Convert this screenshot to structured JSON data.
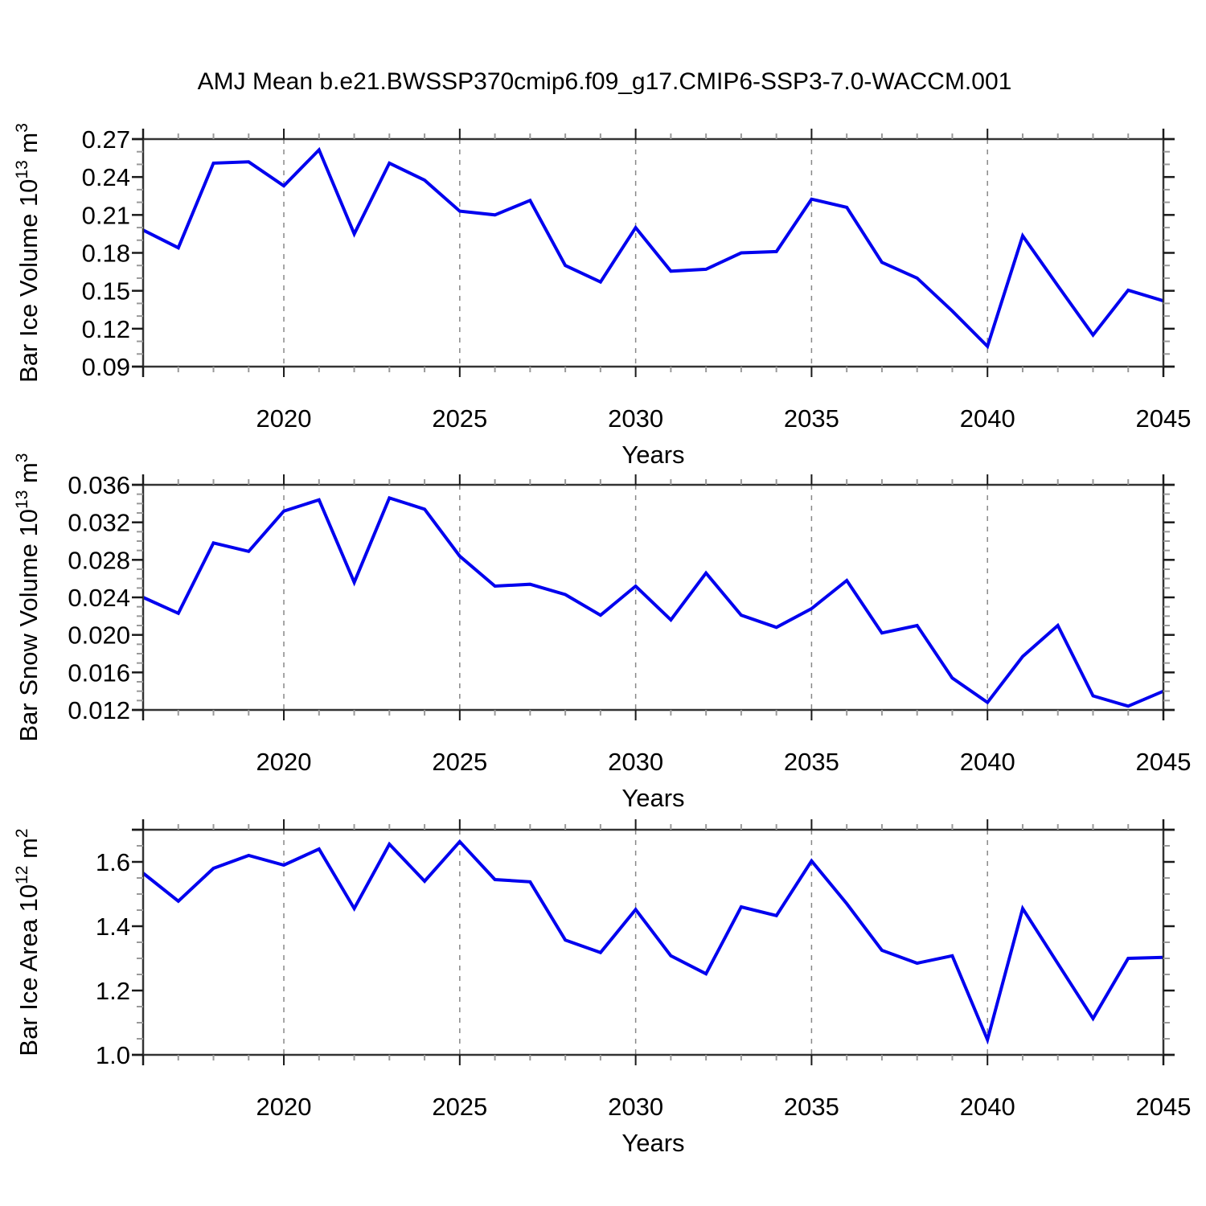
{
  "title": "AMJ Mean b.e21.BWSSP370cmip6.f09_g17.CMIP6-SSP3-7.0-WACCM.001",
  "colors": {
    "line": "#0000EE",
    "grid": "#888888",
    "frame": "#333333",
    "minor_tick": "#999999",
    "major_tick": "#1a1a1a",
    "text": "#000000"
  },
  "chart_data": [
    {
      "type": "line",
      "name": "bar-ice-volume",
      "ylabel": "Bar Ice Volume 10^13 m^3",
      "ylabel_parts": [
        {
          "t": "Bar Ice Volume 10"
        },
        {
          "t": "13",
          "sup": true
        },
        {
          "t": " m"
        },
        {
          "t": "3",
          "sup": true
        }
      ],
      "xlabel": "Years",
      "x": [
        2016,
        2017,
        2018,
        2019,
        2020,
        2021,
        2022,
        2023,
        2024,
        2025,
        2026,
        2027,
        2028,
        2029,
        2030,
        2031,
        2032,
        2033,
        2034,
        2035,
        2036,
        2037,
        2038,
        2039,
        2040,
        2041,
        2042,
        2043,
        2044,
        2045
      ],
      "values": [
        0.198,
        0.184,
        0.251,
        0.252,
        0.233,
        0.2615,
        0.195,
        0.251,
        0.2375,
        0.213,
        0.21,
        0.2215,
        0.17,
        0.157,
        0.2,
        0.1655,
        0.167,
        0.18,
        0.181,
        0.2225,
        0.216,
        0.1725,
        0.16,
        0.134,
        0.106,
        0.1935,
        0.154,
        0.115,
        0.1505,
        0.142
      ],
      "ylim": [
        0.09,
        0.27
      ],
      "yticks": [
        {
          "v": 0.09,
          "label": "0.09"
        },
        {
          "v": 0.12,
          "label": "0.12"
        },
        {
          "v": 0.15,
          "label": "0.15"
        },
        {
          "v": 0.18,
          "label": "0.18"
        },
        {
          "v": 0.21,
          "label": "0.21"
        },
        {
          "v": 0.24,
          "label": "0.24"
        },
        {
          "v": 0.27,
          "label": "0.27"
        }
      ],
      "y_minor_step": 0.01,
      "xticks_major": [
        2020,
        2025,
        2030,
        2035,
        2040,
        2045
      ],
      "xtick_labels": [
        "2020",
        "2025",
        "2030",
        "2035",
        "2040",
        "2045"
      ],
      "grid_x": [
        2020,
        2025,
        2030,
        2035,
        2040
      ],
      "xlim": [
        2016,
        2045
      ],
      "grid": "vertical-dashed",
      "legend": "none"
    },
    {
      "type": "line",
      "name": "bar-snow-volume",
      "ylabel": "Bar Snow Volume 10^13 m^3",
      "ylabel_parts": [
        {
          "t": "Bar Snow Volume 10"
        },
        {
          "t": "13",
          "sup": true
        },
        {
          "t": " m"
        },
        {
          "t": "3",
          "sup": true
        }
      ],
      "xlabel": "Years",
      "x": [
        2016,
        2017,
        2018,
        2019,
        2020,
        2021,
        2022,
        2023,
        2024,
        2025,
        2026,
        2027,
        2028,
        2029,
        2030,
        2031,
        2032,
        2033,
        2034,
        2035,
        2036,
        2037,
        2038,
        2039,
        2040,
        2041,
        2042,
        2043,
        2044,
        2045
      ],
      "values": [
        0.024,
        0.0223,
        0.0298,
        0.0289,
        0.0332,
        0.0344,
        0.0256,
        0.0346,
        0.0334,
        0.0284,
        0.0252,
        0.0254,
        0.0243,
        0.0221,
        0.0252,
        0.0216,
        0.0266,
        0.0221,
        0.0208,
        0.0228,
        0.0258,
        0.0202,
        0.021,
        0.0154,
        0.0128,
        0.0177,
        0.021,
        0.0135,
        0.0124,
        0.014
      ],
      "ylim": [
        0.012,
        0.036
      ],
      "yticks": [
        {
          "v": 0.012,
          "label": "0.012"
        },
        {
          "v": 0.016,
          "label": "0.016"
        },
        {
          "v": 0.02,
          "label": "0.020"
        },
        {
          "v": 0.024,
          "label": "0.024"
        },
        {
          "v": 0.028,
          "label": "0.028"
        },
        {
          "v": 0.032,
          "label": "0.032"
        },
        {
          "v": 0.036,
          "label": "0.036"
        }
      ],
      "y_minor_step": 0.001,
      "xticks_major": [
        2020,
        2025,
        2030,
        2035,
        2040,
        2045
      ],
      "xtick_labels": [
        "2020",
        "2025",
        "2030",
        "2035",
        "2040",
        "2045"
      ],
      "grid_x": [
        2020,
        2025,
        2030,
        2035,
        2040
      ],
      "xlim": [
        2016,
        2045
      ],
      "grid": "vertical-dashed",
      "legend": "none"
    },
    {
      "type": "line",
      "name": "bar-ice-area",
      "ylabel": "Bar Ice Area 10^12 m^2",
      "ylabel_parts": [
        {
          "t": "Bar Ice Area 10"
        },
        {
          "t": "12",
          "sup": true
        },
        {
          "t": " m"
        },
        {
          "t": "2",
          "sup": true
        }
      ],
      "xlabel": "Years",
      "x": [
        2016,
        2017,
        2018,
        2019,
        2020,
        2021,
        2022,
        2023,
        2024,
        2025,
        2026,
        2027,
        2028,
        2029,
        2030,
        2031,
        2032,
        2033,
        2034,
        2035,
        2036,
        2037,
        2038,
        2039,
        2040,
        2041,
        2042,
        2043,
        2044,
        2045
      ],
      "values": [
        1.565,
        1.478,
        1.58,
        1.62,
        1.59,
        1.64,
        1.455,
        1.655,
        1.54,
        1.663,
        1.545,
        1.538,
        1.357,
        1.318,
        1.452,
        1.308,
        1.252,
        1.46,
        1.433,
        1.603,
        1.47,
        1.325,
        1.285,
        1.308,
        1.047,
        1.455,
        1.284,
        1.113,
        1.3,
        1.303
      ],
      "ylim": [
        1.0,
        1.7
      ],
      "yticks": [
        {
          "v": 1.0,
          "label": "1.0"
        },
        {
          "v": 1.2,
          "label": "1.2"
        },
        {
          "v": 1.4,
          "label": "1.4"
        },
        {
          "v": 1.6,
          "label": "1.6"
        },
        {
          "v": 1.7,
          "label": ""
        }
      ],
      "y_minor_step": 0.05,
      "xticks_major": [
        2020,
        2025,
        2030,
        2035,
        2040,
        2045
      ],
      "xtick_labels": [
        "2020",
        "2025",
        "2030",
        "2035",
        "2040",
        "2045"
      ],
      "grid_x": [
        2020,
        2025,
        2030,
        2035,
        2040
      ],
      "xlim": [
        2016,
        2045
      ],
      "grid": "vertical-dashed",
      "legend": "none"
    }
  ]
}
